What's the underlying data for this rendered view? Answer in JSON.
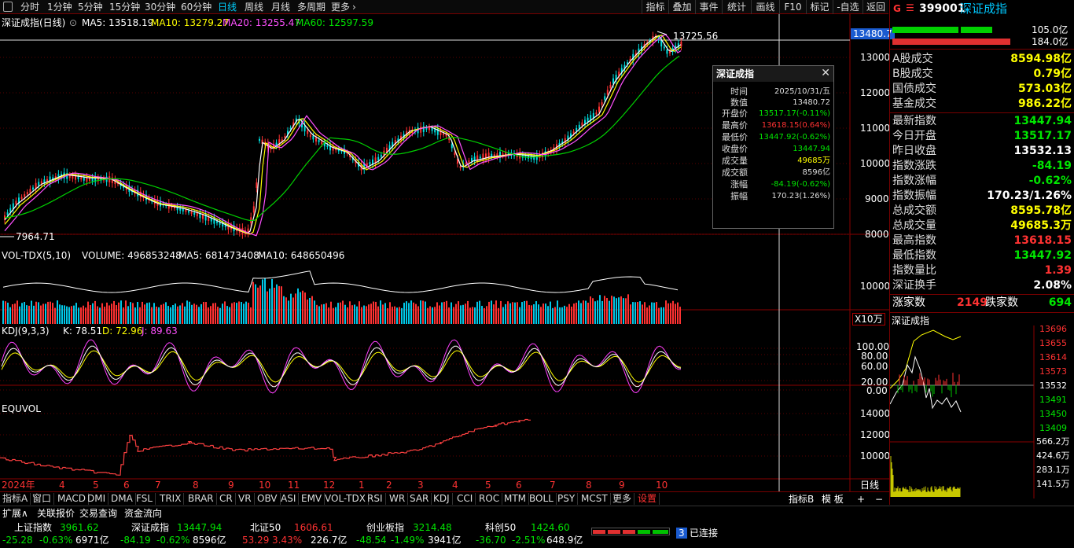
{
  "topbar": {
    "periods": [
      "分时",
      "1分钟",
      "5分钟",
      "15分钟",
      "30分钟",
      "60分钟",
      "日线",
      "周线",
      "月线",
      "多周期",
      "更多"
    ],
    "active_period": "日线",
    "right_buttons": [
      "指标",
      "叠加",
      "事件",
      "统计",
      "画线",
      "F10",
      "标记",
      "-自选",
      "返回"
    ]
  },
  "main_chart": {
    "title": "深证成指(日线)",
    "ma5": "MA5: 13518.19",
    "ma10": "MA10: 13279.27",
    "ma20": "MA20: 13255.47",
    "ma60": "MA60: 12597.59",
    "high_label": "13725.56",
    "low_label": "7964.71",
    "crosshair_price": "13480.7",
    "y_ticks": [
      "13000",
      "12000",
      "11000",
      "10000",
      "9000",
      "8000"
    ]
  },
  "volume_panel": {
    "title": "VOL-TDX(5,10)",
    "volume": "VOLUME: 496853248",
    "ma5": "MA5: 681473408",
    "ma10": "MA10: 648650496",
    "y_ticks": [
      "10000"
    ],
    "unit": "X10万"
  },
  "kdj_panel": {
    "title": "KDJ(9,3,3)",
    "k": "K: 78.51",
    "d": "D: 72.96",
    "j": "J: 89.63",
    "y_ticks": [
      "100.00",
      "80.00",
      "60.00",
      "20.00",
      "0.00"
    ]
  },
  "equvol_panel": {
    "title": "EQUVOL",
    "y_ticks": [
      "14000",
      "12000",
      "10000"
    ]
  },
  "x_axis": {
    "labels": [
      "2024年",
      "4",
      "5",
      "6",
      "7",
      "8",
      "9",
      "10",
      "11",
      "12",
      "1",
      "2",
      "3",
      "4",
      "5",
      "6",
      "7",
      "8",
      "9",
      "10"
    ],
    "period_label": "日线"
  },
  "popup": {
    "title": "深证成指",
    "rows": [
      {
        "label": "时间",
        "value": "2025/10/31/五",
        "color": "#dddddd"
      },
      {
        "label": "数值",
        "value": "13480.72",
        "color": "#dddddd"
      },
      {
        "label": "开盘价",
        "value": "13517.17(-0.11%)",
        "color": "#00e600"
      },
      {
        "label": "最高价",
        "value": "13618.15(0.64%)",
        "color": "#ff3232"
      },
      {
        "label": "最低价",
        "value": "13447.92(-0.62%)",
        "color": "#00e600"
      },
      {
        "label": "收盘价",
        "value": "13447.94",
        "color": "#00e600"
      },
      {
        "label": "成交量",
        "value": "49685万",
        "color": "#ffff00"
      },
      {
        "label": "成交额",
        "value": "8596亿",
        "color": "#dddddd"
      },
      {
        "label": "涨幅",
        "value": "-84.19(-0.62%)",
        "color": "#00e600"
      },
      {
        "label": "振幅",
        "value": "170.23(1.26%)",
        "color": "#dddddd"
      }
    ]
  },
  "right_panel": {
    "code_prefix": "G",
    "code": "399001",
    "name": "深证成指",
    "ratio_top": "105.0亿",
    "ratio_bottom": "184.0亿",
    "stats": [
      {
        "label": "A股成交",
        "value": "8594.98亿",
        "color": "#ffff00"
      },
      {
        "label": "B股成交",
        "value": "0.79亿",
        "color": "#ffff00"
      },
      {
        "label": "国债成交",
        "value": "573.03亿",
        "color": "#ffff00"
      },
      {
        "label": "基金成交",
        "value": "986.22亿",
        "color": "#ffff00"
      },
      {
        "label": "最新指数",
        "value": "13447.94",
        "color": "#00e600"
      },
      {
        "label": "今日开盘",
        "value": "13517.17",
        "color": "#00e600"
      },
      {
        "label": "昨日收盘",
        "value": "13532.13",
        "color": "#ffffff"
      },
      {
        "label": "指数涨跌",
        "value": "-84.19",
        "color": "#00e600"
      },
      {
        "label": "指数涨幅",
        "value": "-0.62%",
        "color": "#00e600"
      },
      {
        "label": "指数振幅",
        "value": "170.23/1.26%",
        "color": "#ffffff"
      },
      {
        "label": "总成交额",
        "value": "8595.78亿",
        "color": "#ffff00"
      },
      {
        "label": "总成交量",
        "value": "49685.3万",
        "color": "#ffff00"
      },
      {
        "label": "最高指数",
        "value": "13618.15",
        "color": "#ff3232"
      },
      {
        "label": "最低指数",
        "value": "13447.92",
        "color": "#00e600"
      },
      {
        "label": "指数量比",
        "value": "1.39",
        "color": "#ff3232"
      },
      {
        "label": "深证换手",
        "value": "2.08%",
        "color": "#ffffff"
      }
    ],
    "up_label": "涨家数",
    "up_count": "2149",
    "down_label": "跌家数",
    "down_count": "694",
    "mini_title": "深证成指",
    "mini_y_ticks": [
      "13696",
      "13655",
      "13614",
      "13573",
      "13532",
      "13491",
      "13450",
      "13409"
    ],
    "mini_vol_ticks": [
      "566.2万",
      "424.6万",
      "283.1万",
      "141.5万"
    ]
  },
  "bottom_tabs": [
    "指标A",
    "窗口",
    "MACD",
    "DMI",
    "DMA",
    "FSL",
    "TRIX",
    "BRAR",
    "CR",
    "VR",
    "OBV",
    "ASI",
    "EMV",
    "VOL-TDX",
    "RSI",
    "WR",
    "SAR",
    "KDJ",
    "CCI",
    "ROC",
    "MTM",
    "BOLL",
    "PSY",
    "MCST",
    "更多",
    "设置"
  ],
  "active_bottom_tab": "设置",
  "bottom_right_tabs": [
    "指标B",
    "模 板",
    "+",
    "−"
  ],
  "bar2": [
    "扩展∧",
    "关联报价",
    "交易查询",
    "资金流向"
  ],
  "status": [
    {
      "name": "上证指数",
      "price": "3961.62",
      "change": "-25.28",
      "pct": "-0.63%",
      "amount": "6971亿",
      "dir": "down"
    },
    {
      "name": "深证成指",
      "price": "13447.94",
      "change": "-84.19",
      "pct": "-0.62%",
      "amount": "8596亿",
      "dir": "down"
    },
    {
      "name": "北证50",
      "price": "1606.61",
      "change": "53.29",
      "pct": "3.43%",
      "amount": "226.7亿",
      "dir": "up"
    },
    {
      "name": "创业板指",
      "price": "3214.48",
      "change": "-48.54",
      "pct": "-1.49%",
      "amount": "3941亿",
      "dir": "down"
    },
    {
      "name": "科创50",
      "price": "1424.60",
      "change": "-36.70",
      "pct": "-2.51%",
      "amount": "648.9亿",
      "dir": "down"
    }
  ],
  "connection": {
    "badge": "3",
    "label": "已连接"
  }
}
